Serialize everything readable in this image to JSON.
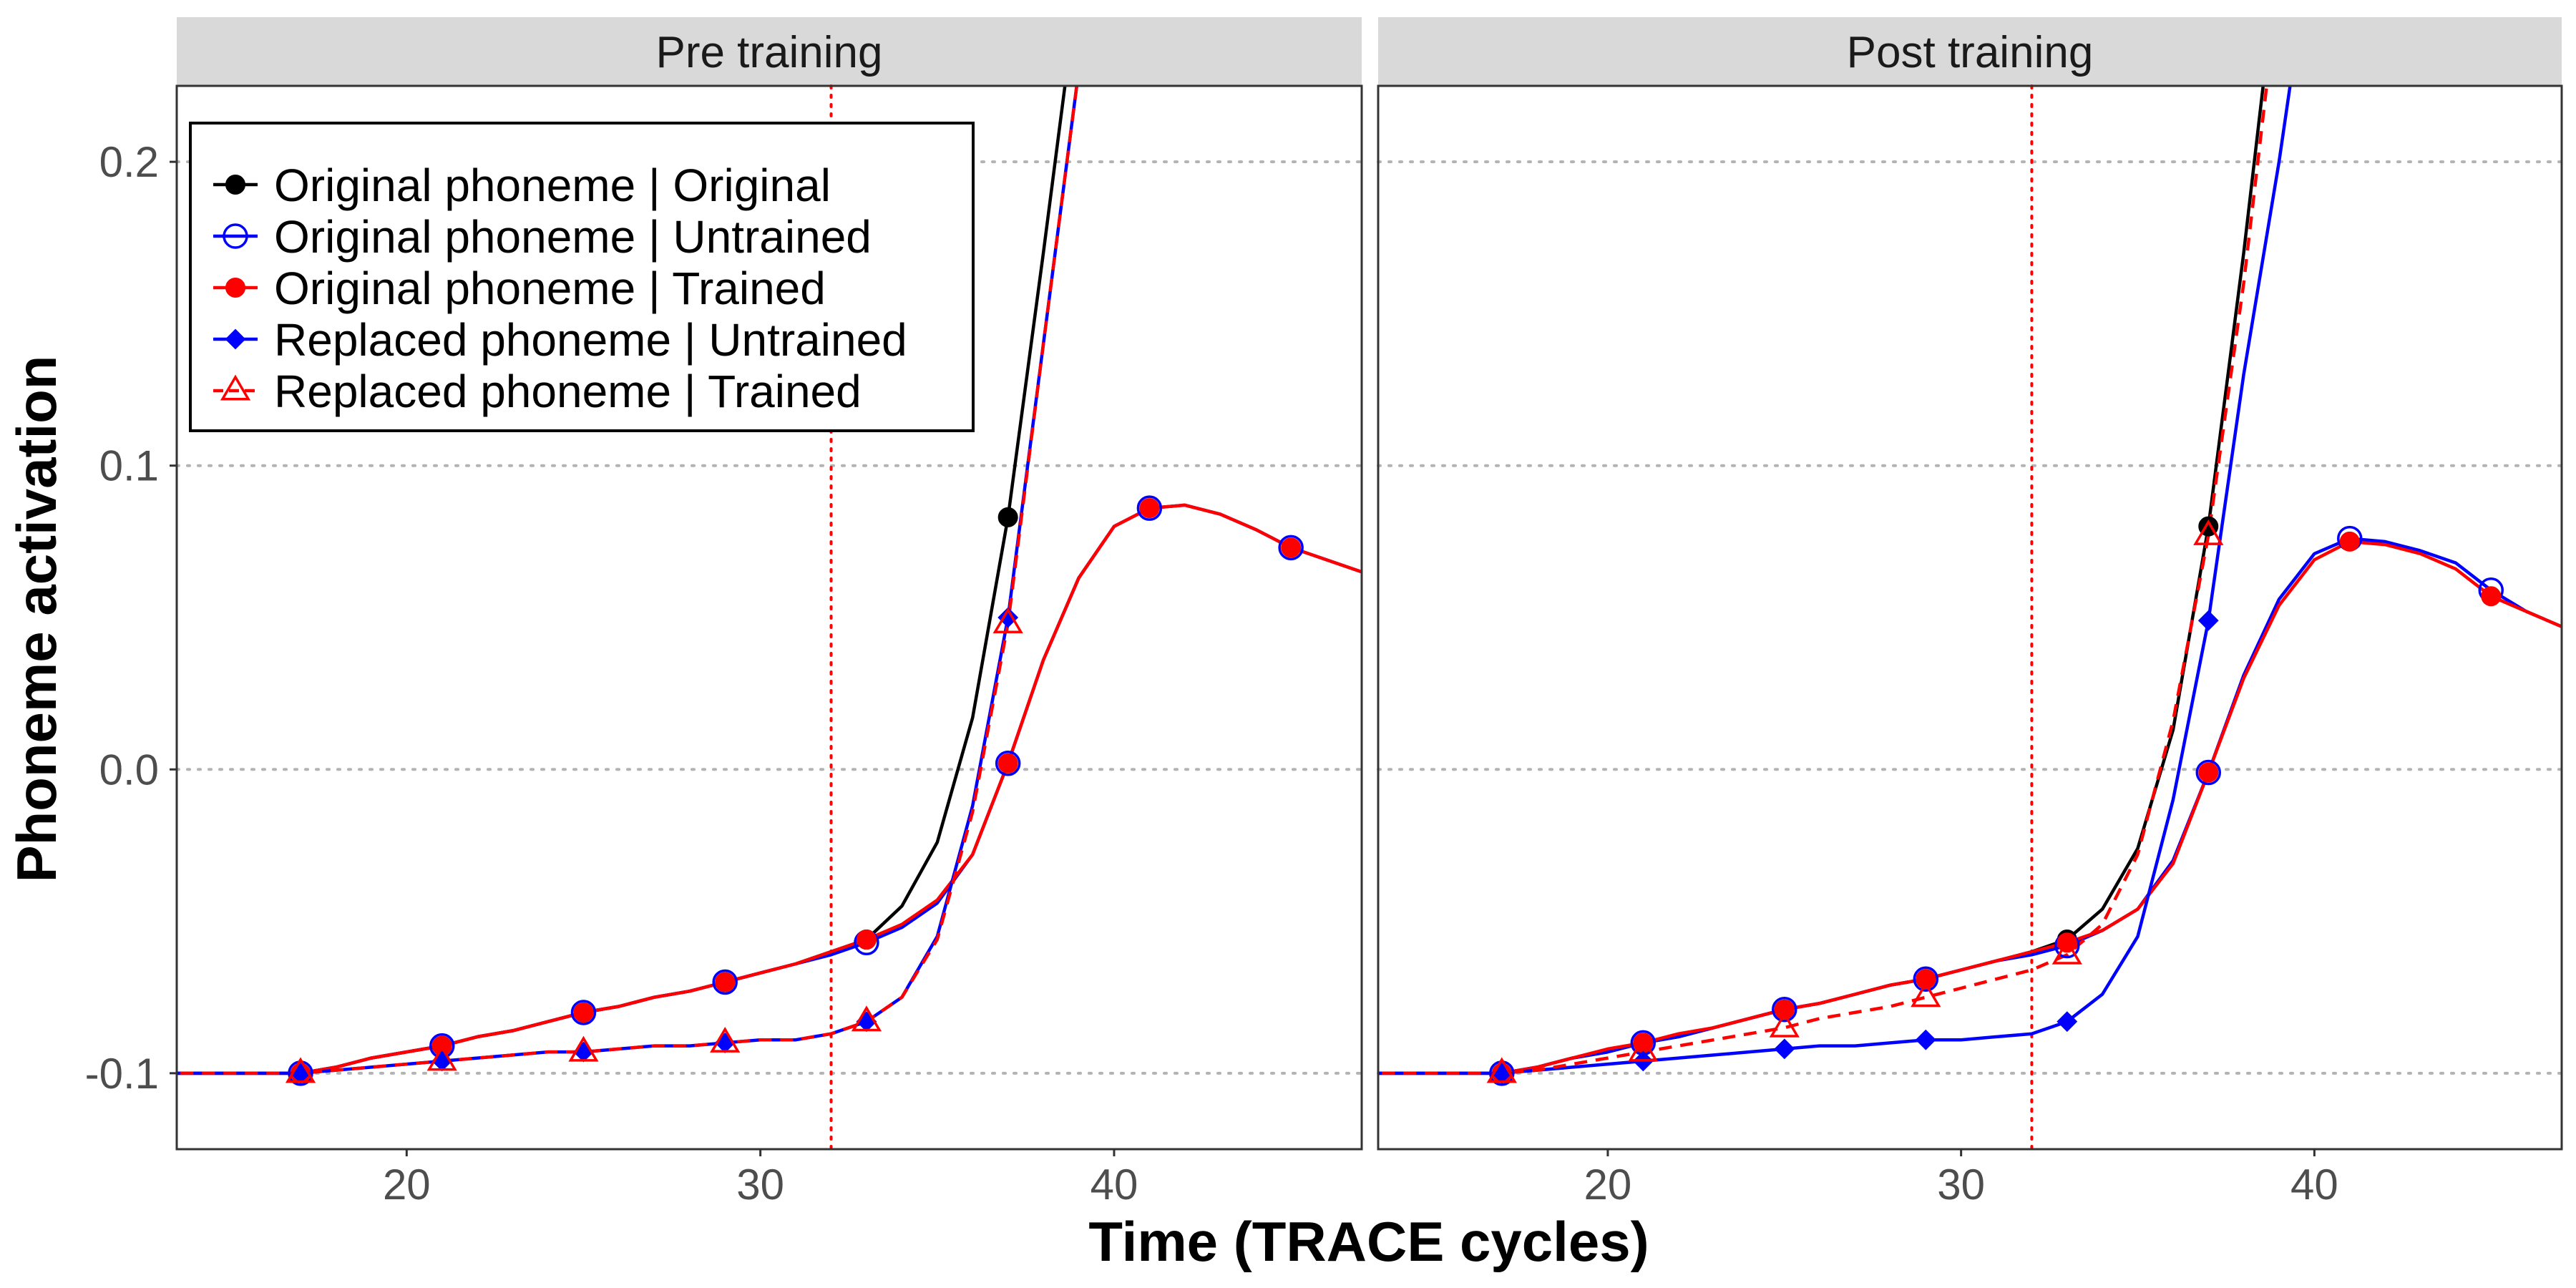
{
  "chart_data": {
    "type": "line",
    "xlabel": "Time (TRACE cycles)",
    "ylabel": "Phoneme activation",
    "xlim": [
      13.5,
      47
    ],
    "ylim": [
      -0.125,
      0.225
    ],
    "x_ticks": [
      20,
      30,
      40
    ],
    "y_ticks": [
      -0.1,
      0.0,
      0.1,
      0.2
    ],
    "y_tick_labels": [
      "-0.1",
      "0.0",
      "0.1",
      "0.2"
    ],
    "grid": "horizontal dotted at major y ticks",
    "vline_x": 32,
    "legend_position": "top-left",
    "legend": [
      {
        "label": "Original phoneme    | Original",
        "color": "#000000",
        "marker": "filled-circle",
        "line": "solid"
      },
      {
        "label": "Original phoneme    | Untrained",
        "color": "#0000ff",
        "marker": "open-circle",
        "line": "solid"
      },
      {
        "label": "Original phoneme    | Trained",
        "color": "#ff0000",
        "marker": "filled-circle",
        "line": "solid"
      },
      {
        "label": "Replaced phoneme | Untrained",
        "color": "#0000ff",
        "marker": "filled-diamond",
        "line": "solid"
      },
      {
        "label": "Replaced phoneme | Trained",
        "color": "#ff0000",
        "marker": "open-triangle",
        "line": "dashed"
      }
    ],
    "panels": [
      {
        "title": "Pre training",
        "series": [
          {
            "name": "Original phoneme | Original",
            "color": "#000000",
            "marker": "filled-circle",
            "dash": "solid",
            "x": [
              13,
              14,
              15,
              16,
              17,
              18,
              19,
              20,
              21,
              22,
              23,
              24,
              25,
              26,
              27,
              28,
              29,
              30,
              31,
              32,
              33,
              34,
              35,
              36,
              37,
              38,
              39
            ],
            "y": [
              -0.1,
              -0.1,
              -0.1,
              -0.1,
              -0.1,
              -0.098,
              -0.095,
              -0.093,
              -0.091,
              -0.088,
              -0.086,
              -0.083,
              -0.08,
              -0.078,
              -0.075,
              -0.073,
              -0.07,
              -0.067,
              -0.064,
              -0.06,
              -0.056,
              -0.045,
              -0.024,
              0.017,
              0.083,
              0.17,
              0.26
            ],
            "marker_x": [
              17,
              21,
              25,
              29,
              33,
              37
            ]
          },
          {
            "name": "Original phoneme | Untrained",
            "color": "#0000ff",
            "marker": "open-circle",
            "dash": "solid",
            "x": [
              13,
              14,
              15,
              16,
              17,
              18,
              19,
              20,
              21,
              22,
              23,
              24,
              25,
              26,
              27,
              28,
              29,
              30,
              31,
              32,
              33,
              34,
              35,
              36,
              37,
              38,
              39,
              40,
              41,
              42,
              43,
              44,
              45,
              46,
              47
            ],
            "y": [
              -0.1,
              -0.1,
              -0.1,
              -0.1,
              -0.1,
              -0.098,
              -0.095,
              -0.093,
              -0.091,
              -0.088,
              -0.086,
              -0.083,
              -0.08,
              -0.078,
              -0.075,
              -0.073,
              -0.07,
              -0.067,
              -0.064,
              -0.061,
              -0.057,
              -0.052,
              -0.044,
              -0.028,
              0.002,
              0.036,
              0.063,
              0.08,
              0.086,
              0.087,
              0.084,
              0.079,
              0.073,
              0.069,
              0.065
            ],
            "marker_x": [
              17,
              21,
              25,
              29,
              33,
              37,
              41,
              45
            ]
          },
          {
            "name": "Original phoneme | Trained",
            "color": "#ff0000",
            "marker": "filled-circle",
            "dash": "solid",
            "x": [
              13,
              14,
              15,
              16,
              17,
              18,
              19,
              20,
              21,
              22,
              23,
              24,
              25,
              26,
              27,
              28,
              29,
              30,
              31,
              32,
              33,
              34,
              35,
              36,
              37,
              38,
              39,
              40,
              41,
              42,
              43,
              44,
              45,
              46,
              47
            ],
            "y": [
              -0.1,
              -0.1,
              -0.1,
              -0.1,
              -0.1,
              -0.098,
              -0.095,
              -0.093,
              -0.091,
              -0.088,
              -0.086,
              -0.083,
              -0.08,
              -0.078,
              -0.075,
              -0.073,
              -0.07,
              -0.067,
              -0.064,
              -0.06,
              -0.056,
              -0.051,
              -0.043,
              -0.028,
              0.002,
              0.036,
              0.063,
              0.08,
              0.086,
              0.087,
              0.084,
              0.079,
              0.073,
              0.069,
              0.065
            ],
            "marker_x": [
              17,
              21,
              25,
              29,
              33,
              37,
              41,
              45
            ]
          },
          {
            "name": "Replaced phoneme | Untrained",
            "color": "#0000ff",
            "marker": "filled-diamond",
            "dash": "solid",
            "x": [
              13,
              14,
              15,
              16,
              17,
              18,
              19,
              20,
              21,
              22,
              23,
              24,
              25,
              26,
              27,
              28,
              29,
              30,
              31,
              32,
              33,
              34,
              35,
              36,
              37,
              38,
              39,
              40
            ],
            "y": [
              -0.1,
              -0.1,
              -0.1,
              -0.1,
              -0.1,
              -0.099,
              -0.098,
              -0.097,
              -0.096,
              -0.095,
              -0.094,
              -0.093,
              -0.093,
              -0.092,
              -0.091,
              -0.091,
              -0.09,
              -0.089,
              -0.089,
              -0.087,
              -0.083,
              -0.075,
              -0.055,
              -0.012,
              0.05,
              0.14,
              0.23,
              0.33
            ],
            "marker_x": [
              17,
              21,
              25,
              29,
              33,
              37
            ]
          },
          {
            "name": "Replaced phoneme | Trained",
            "color": "#ff0000",
            "marker": "open-triangle",
            "dash": "dashed",
            "x": [
              13,
              14,
              15,
              16,
              17,
              18,
              19,
              20,
              21,
              22,
              23,
              24,
              25,
              26,
              27,
              28,
              29,
              30,
              31,
              32,
              33,
              34,
              35,
              36,
              37,
              38,
              39,
              40
            ],
            "y": [
              -0.1,
              -0.1,
              -0.1,
              -0.1,
              -0.1,
              -0.099,
              -0.098,
              -0.097,
              -0.096,
              -0.095,
              -0.094,
              -0.093,
              -0.093,
              -0.092,
              -0.091,
              -0.091,
              -0.09,
              -0.089,
              -0.089,
              -0.087,
              -0.083,
              -0.075,
              -0.056,
              -0.014,
              0.048,
              0.14,
              0.23,
              0.33
            ],
            "marker_x": [
              17,
              21,
              25,
              29,
              33,
              37
            ]
          }
        ]
      },
      {
        "title": "Post training",
        "series": [
          {
            "name": "Original phoneme | Original",
            "color": "#000000",
            "marker": "filled-circle",
            "dash": "solid",
            "x": [
              13,
              14,
              15,
              16,
              17,
              18,
              19,
              20,
              21,
              22,
              23,
              24,
              25,
              26,
              27,
              28,
              29,
              30,
              31,
              32,
              33,
              34,
              35,
              36,
              37,
              38,
              39
            ],
            "y": [
              -0.1,
              -0.1,
              -0.1,
              -0.1,
              -0.1,
              -0.098,
              -0.095,
              -0.093,
              -0.09,
              -0.088,
              -0.085,
              -0.082,
              -0.079,
              -0.077,
              -0.074,
              -0.071,
              -0.069,
              -0.066,
              -0.063,
              -0.06,
              -0.056,
              -0.046,
              -0.026,
              0.013,
              0.08,
              0.17,
              0.27
            ],
            "marker_x": [
              17,
              21,
              25,
              29,
              33,
              37
            ]
          },
          {
            "name": "Original phoneme | Untrained",
            "color": "#0000ff",
            "marker": "open-circle",
            "dash": "solid",
            "x": [
              13,
              14,
              15,
              16,
              17,
              18,
              19,
              20,
              21,
              22,
              23,
              24,
              25,
              26,
              27,
              28,
              29,
              30,
              31,
              32,
              33,
              34,
              35,
              36,
              37,
              38,
              39,
              40,
              41,
              42,
              43,
              44,
              45,
              46,
              47
            ],
            "y": [
              -0.1,
              -0.1,
              -0.1,
              -0.1,
              -0.1,
              -0.098,
              -0.095,
              -0.093,
              -0.09,
              -0.088,
              -0.085,
              -0.082,
              -0.079,
              -0.077,
              -0.074,
              -0.071,
              -0.069,
              -0.066,
              -0.063,
              -0.061,
              -0.058,
              -0.053,
              -0.046,
              -0.03,
              -0.001,
              0.031,
              0.056,
              0.071,
              0.076,
              0.075,
              0.072,
              0.068,
              0.059,
              0.052,
              0.047
            ],
            "marker_x": [
              17,
              21,
              25,
              29,
              33,
              37,
              41,
              45
            ]
          },
          {
            "name": "Original phoneme | Trained",
            "color": "#ff0000",
            "marker": "filled-circle",
            "dash": "solid",
            "x": [
              13,
              14,
              15,
              16,
              17,
              18,
              19,
              20,
              21,
              22,
              23,
              24,
              25,
              26,
              27,
              28,
              29,
              30,
              31,
              32,
              33,
              34,
              35,
              36,
              37,
              38,
              39,
              40,
              41,
              42,
              43,
              44,
              45,
              46,
              47
            ],
            "y": [
              -0.1,
              -0.1,
              -0.1,
              -0.1,
              -0.1,
              -0.098,
              -0.095,
              -0.092,
              -0.09,
              -0.087,
              -0.085,
              -0.082,
              -0.079,
              -0.077,
              -0.074,
              -0.071,
              -0.069,
              -0.066,
              -0.063,
              -0.06,
              -0.057,
              -0.053,
              -0.046,
              -0.031,
              -0.001,
              0.03,
              0.054,
              0.069,
              0.075,
              0.074,
              0.071,
              0.066,
              0.057,
              0.052,
              0.047
            ],
            "marker_x": [
              17,
              21,
              25,
              29,
              33,
              37,
              41,
              45
            ]
          },
          {
            "name": "Replaced phoneme | Untrained",
            "color": "#0000ff",
            "marker": "filled-diamond",
            "dash": "solid",
            "x": [
              13,
              14,
              15,
              16,
              17,
              18,
              19,
              20,
              21,
              22,
              23,
              24,
              25,
              26,
              27,
              28,
              29,
              30,
              31,
              32,
              33,
              34,
              35,
              36,
              37,
              38,
              39,
              40
            ],
            "y": [
              -0.1,
              -0.1,
              -0.1,
              -0.1,
              -0.1,
              -0.099,
              -0.098,
              -0.097,
              -0.096,
              -0.095,
              -0.094,
              -0.093,
              -0.092,
              -0.091,
              -0.091,
              -0.09,
              -0.089,
              -0.089,
              -0.088,
              -0.087,
              -0.083,
              -0.074,
              -0.055,
              -0.01,
              0.049,
              0.13,
              0.2,
              0.28
            ],
            "marker_x": [
              17,
              21,
              25,
              29,
              33,
              37
            ]
          },
          {
            "name": "Replaced phoneme | Trained",
            "color": "#ff0000",
            "marker": "open-triangle",
            "dash": "dashed",
            "x": [
              13,
              14,
              15,
              16,
              17,
              18,
              19,
              20,
              21,
              22,
              23,
              24,
              25,
              26,
              27,
              28,
              29,
              30,
              31,
              32,
              33,
              34,
              35,
              36,
              37,
              38,
              39
            ],
            "y": [
              -0.1,
              -0.1,
              -0.1,
              -0.1,
              -0.1,
              -0.099,
              -0.097,
              -0.095,
              -0.093,
              -0.091,
              -0.089,
              -0.087,
              -0.085,
              -0.082,
              -0.08,
              -0.078,
              -0.075,
              -0.072,
              -0.069,
              -0.066,
              -0.061,
              -0.051,
              -0.028,
              0.016,
              0.077,
              0.16,
              0.26
            ],
            "marker_x": [
              17,
              21,
              25,
              29,
              33,
              37
            ]
          }
        ]
      }
    ]
  }
}
